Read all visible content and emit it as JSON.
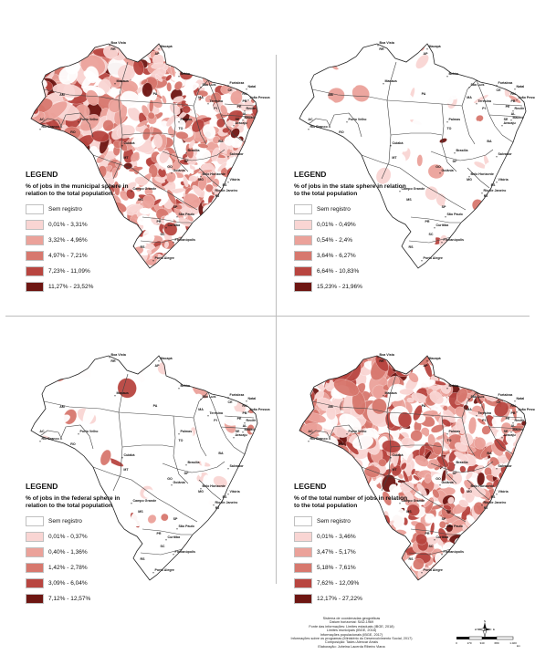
{
  "panels": [
    {
      "id": "municipal",
      "legend_title": "LEGEND",
      "legend_subtitle": "% of jobs in the municipal sphere in relation to the total population",
      "classes": [
        {
          "label": "Sem registro",
          "color": "#ffffff"
        },
        {
          "label": "0,01% - 3,31%",
          "color": "#f9d5d3"
        },
        {
          "label": "3,32% - 4,96%",
          "color": "#eba29a"
        },
        {
          "label": "4,97% - 7,21%",
          "color": "#d7786e"
        },
        {
          "label": "7,23% - 11,09%",
          "color": "#b84540"
        },
        {
          "label": "11,27% - 23,52%",
          "color": "#6e1612"
        }
      ]
    },
    {
      "id": "state",
      "legend_title": "LEGEND",
      "legend_subtitle": "% of jobs in the state sphere in relation to the total population",
      "classes": [
        {
          "label": "Sem registro",
          "color": "#ffffff"
        },
        {
          "label": "0,01% - 0,49%",
          "color": "#f9d5d3"
        },
        {
          "label": "0,54% - 2,4%",
          "color": "#eba29a"
        },
        {
          "label": "3,64% - 6,27%",
          "color": "#d7786e"
        },
        {
          "label": "6,64% - 10,83%",
          "color": "#b84540"
        },
        {
          "label": "15,23% - 21,96%",
          "color": "#6e1612"
        }
      ]
    },
    {
      "id": "federal",
      "legend_title": "LEGEND",
      "legend_subtitle": "% of jobs in the federal sphere in relation to the total population",
      "classes": [
        {
          "label": "Sem registro",
          "color": "#ffffff"
        },
        {
          "label": "0,01% - 0,37%",
          "color": "#f9d5d3"
        },
        {
          "label": "0,40% - 1,36%",
          "color": "#eba29a"
        },
        {
          "label": "1,42% - 2,78%",
          "color": "#d7786e"
        },
        {
          "label": "3,09% - 6,04%",
          "color": "#b84540"
        },
        {
          "label": "7,12% - 12,57%",
          "color": "#6e1612"
        }
      ]
    },
    {
      "id": "total",
      "legend_title": "LEGEND",
      "legend_subtitle": "% of the total number of jobs in relation to the total population",
      "classes": [
        {
          "label": "Sem registro",
          "color": "#ffffff"
        },
        {
          "label": "0,01% - 3,46%",
          "color": "#f9d5d3"
        },
        {
          "label": "3,47% - 5,17%",
          "color": "#eba29a"
        },
        {
          "label": "5,18% - 7,61%",
          "color": "#d7786e"
        },
        {
          "label": "7,62% - 12,09%",
          "color": "#b84540"
        },
        {
          "label": "12,17% - 27,22%",
          "color": "#6e1612"
        }
      ]
    }
  ],
  "map_labels": {
    "states": [
      "RR",
      "AP",
      "AM",
      "PA",
      "MA",
      "CE",
      "RN",
      "PB",
      "PE",
      "AL",
      "SE",
      "PI",
      "TO",
      "BA",
      "AC",
      "RO",
      "MT",
      "GO",
      "DF",
      "MG",
      "ES",
      "RJ",
      "MS",
      "SP",
      "PR",
      "SC",
      "RS"
    ],
    "capitals": [
      "Boa Vista",
      "Macapá",
      "Manaus",
      "Belém",
      "São Luís",
      "Fortaleza",
      "Natal",
      "João Pessoa",
      "Recife",
      "Maceió",
      "Aracaju",
      "Teresina",
      "Palmas",
      "Salvador",
      "Rio Branco",
      "Porto Velho",
      "Cuiabá",
      "Goiânia",
      "Brasília",
      "Belo Horizonte",
      "Vitória",
      "Rio de Janeiro",
      "Campo Grande",
      "São Paulo",
      "Curitiba",
      "Florianópolis",
      "Porto Alegre"
    ]
  },
  "credits": [
    "Sistema de coordenadas geográficas",
    "Datum horizontal: SAD-1969",
    "Fonte das informações: Limites estaduais (IBGE, 2018)",
    "Limites municipais (IBGE, 2018)",
    "Informações populacionais (IBGE, 2017)",
    "Informações sobre os programas (Ministério do Desenvolvimento Social, 2017)",
    "Composição: Tadeu Alencar Arrais",
    "Elaboração: Juheina Lacerda Ribeiro Viana"
  ],
  "compass": {
    "n": "N",
    "s": "S",
    "e": "E",
    "w": "W"
  },
  "scale": {
    "ticks": [
      "0",
      "170",
      "340",
      "680",
      "1.020"
    ],
    "unit": "km"
  }
}
